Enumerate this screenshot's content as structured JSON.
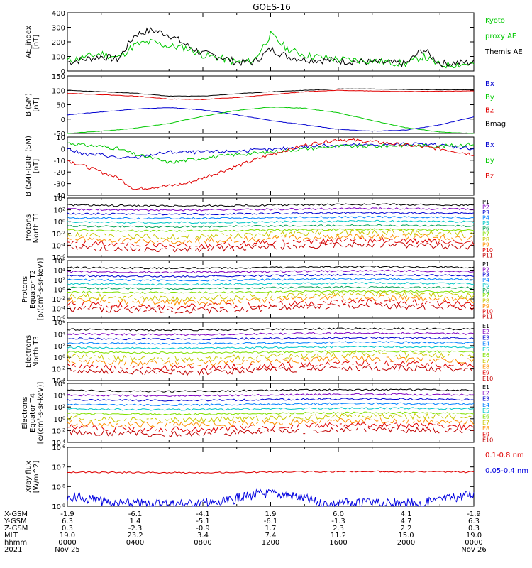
{
  "title": "GOES-16",
  "colors": {
    "black": "#000000",
    "red": "#e00000",
    "green": "#00c800",
    "blue": "#0000d0",
    "yellow": "#c8c800",
    "lime": "#80e000",
    "cyan": "#00c8c8",
    "purple": "#8000c0",
    "orange": "#ff9000",
    "teal": "#00a0a0",
    "xray_red": "#e00000",
    "xray_blue": "#0000e0"
  },
  "x_axis": {
    "tick_hours": [
      0,
      4,
      8,
      12,
      16,
      20,
      24
    ],
    "rows": [
      {
        "label": "X-GSM",
        "values": [
          "-1.9",
          "-6.1",
          "-4.1",
          "1.9",
          "6.0",
          "4.1",
          "-1.9"
        ]
      },
      {
        "label": "Y-GSM",
        "values": [
          "6.3",
          "1.4",
          "-5.1",
          "-6.1",
          "-1.3",
          "4.7",
          "6.3"
        ]
      },
      {
        "label": "Z-GSM",
        "values": [
          "0.3",
          "-2.3",
          "-0.9",
          "1.7",
          "2.3",
          "2.2",
          "0.3"
        ]
      },
      {
        "label": "MLT",
        "values": [
          "19.0",
          "23.2",
          "3.4",
          "7.4",
          "11.2",
          "15.0",
          "19.0"
        ]
      },
      {
        "label": "hhmm",
        "values": [
          "0000",
          "0400",
          "0800",
          "1200",
          "1600",
          "2000",
          "0000"
        ]
      },
      {
        "label": "2021",
        "values": [
          "Nov 25",
          "",
          "",
          "",
          "",
          "",
          "Nov 26"
        ]
      }
    ]
  },
  "panels": [
    {
      "ylabel": [
        "AE_index",
        "[nT]"
      ],
      "yticks": [
        "0",
        "100",
        "200",
        "300",
        "400"
      ],
      "legend": [
        {
          "text": "Kyoto",
          "color": "#00c800"
        },
        {
          "text": "proxy AE",
          "color": "#00c800"
        },
        {
          "text": "Themis AE",
          "color": "#000000"
        }
      ]
    },
    {
      "ylabel": [
        "B (SM)",
        "[nT]"
      ],
      "yticks": [
        "-50",
        "0",
        "50",
        "100",
        "150"
      ],
      "legend": [
        {
          "text": "Bx",
          "color": "#0000d0"
        },
        {
          "text": "By",
          "color": "#00c800"
        },
        {
          "text": "Bz",
          "color": "#e00000"
        },
        {
          "text": "Bmag",
          "color": "#000000"
        }
      ]
    },
    {
      "ylabel": [
        "B (SM)-IGRF (SM)",
        "[nT]"
      ],
      "yticks": [
        "-40",
        "-30",
        "-20",
        "-10",
        "0",
        "10"
      ],
      "legend": [
        {
          "text": "Bx",
          "color": "#0000d0"
        },
        {
          "text": "By",
          "color": "#00c800"
        },
        {
          "text": "Bz",
          "color": "#e00000"
        }
      ]
    },
    {
      "ylabel": [
        "Protons",
        "North T1"
      ],
      "yticks": [
        "10^-6",
        "10^-4",
        "10^-2",
        "10^0",
        "10^2",
        "10^4"
      ],
      "legend": [
        {
          "text": "P1",
          "color": "#000000"
        },
        {
          "text": "P2",
          "color": "#8000c0"
        },
        {
          "text": "P3",
          "color": "#0000d0"
        },
        {
          "text": "P4",
          "color": "#0080ff"
        },
        {
          "text": "P5",
          "color": "#00c8c8"
        },
        {
          "text": "P6",
          "color": "#00a050"
        },
        {
          "text": "P7",
          "color": "#80e000"
        },
        {
          "text": "P8",
          "color": "#c8c800"
        },
        {
          "text": "P9",
          "color": "#ff9000"
        },
        {
          "text": "P10",
          "color": "#e00000"
        },
        {
          "text": "P11",
          "color": "#c00000"
        }
      ]
    },
    {
      "ylabel": [
        "Protons",
        "Equator T2",
        "[p/(cm²-s-sr-keV)]"
      ],
      "yticks": [
        "10^-6",
        "10^-4",
        "10^-2",
        "10^0",
        "10^2",
        "10^4",
        "10^6"
      ],
      "legend": [
        {
          "text": "P1",
          "color": "#000000"
        },
        {
          "text": "P2",
          "color": "#8000c0"
        },
        {
          "text": "P3",
          "color": "#0000d0"
        },
        {
          "text": "P4",
          "color": "#0080ff"
        },
        {
          "text": "P5",
          "color": "#00c8c8"
        },
        {
          "text": "P6",
          "color": "#00a050"
        },
        {
          "text": "P7",
          "color": "#80e000"
        },
        {
          "text": "P8",
          "color": "#c8c800"
        },
        {
          "text": "P9",
          "color": "#ff9000"
        },
        {
          "text": "P10",
          "color": "#e00000"
        },
        {
          "text": "P11",
          "color": "#c00000"
        }
      ]
    },
    {
      "ylabel": [
        "Electrons",
        "North T3"
      ],
      "yticks": [
        "10^-4",
        "10^-2",
        "10^0",
        "10^2",
        "10^4",
        "10^6"
      ],
      "legend": [
        {
          "text": "E1",
          "color": "#000000"
        },
        {
          "text": "E2",
          "color": "#8000c0"
        },
        {
          "text": "E3",
          "color": "#0000d0"
        },
        {
          "text": "E4",
          "color": "#0080ff"
        },
        {
          "text": "E5",
          "color": "#00c8c8"
        },
        {
          "text": "E6",
          "color": "#80e000"
        },
        {
          "text": "E7",
          "color": "#c8c800"
        },
        {
          "text": "E8",
          "color": "#ff9000"
        },
        {
          "text": "E9",
          "color": "#e00000"
        },
        {
          "text": "E10",
          "color": "#c00000"
        }
      ]
    },
    {
      "ylabel": [
        "Electrons",
        "Equator T4",
        "[e/(cm²-s-sr-keV)]"
      ],
      "yticks": [
        "10^-4",
        "10^-2",
        "10^0",
        "10^2",
        "10^4",
        "10^6"
      ],
      "legend": [
        {
          "text": "E1",
          "color": "#000000"
        },
        {
          "text": "E2",
          "color": "#8000c0"
        },
        {
          "text": "E3",
          "color": "#0000d0"
        },
        {
          "text": "E4",
          "color": "#0080ff"
        },
        {
          "text": "E5",
          "color": "#00c8c8"
        },
        {
          "text": "E6",
          "color": "#80e000"
        },
        {
          "text": "E7",
          "color": "#c8c800"
        },
        {
          "text": "E8",
          "color": "#ff9000"
        },
        {
          "text": "E9",
          "color": "#e00000"
        },
        {
          "text": "E10",
          "color": "#c00000"
        }
      ]
    },
    {
      "ylabel": [
        "Xray flux",
        "[W/m^2]"
      ],
      "yticks": [
        "10^-9",
        "10^-8",
        "10^-7",
        "10^-6"
      ],
      "legend": [
        {
          "text": "0.1-0.8 nm",
          "color": "#e00000"
        },
        {
          "text": "0.05-0.4 nm",
          "color": "#0000e0"
        }
      ]
    }
  ],
  "chart_data": [
    {
      "type": "line",
      "x": [
        0,
        2,
        3,
        4,
        5,
        6,
        7,
        8,
        9,
        10,
        11,
        12,
        13,
        14,
        16,
        18,
        20,
        21,
        22,
        24
      ],
      "series": [
        {
          "name": "Themis AE",
          "values": [
            60,
            100,
            80,
            250,
            280,
            250,
            180,
            120,
            100,
            60,
            60,
            150,
            100,
            80,
            70,
            60,
            50,
            150,
            50,
            60
          ]
        },
        {
          "name": "Kyoto proxy AE",
          "values": [
            70,
            120,
            90,
            180,
            200,
            170,
            160,
            110,
            90,
            60,
            70,
            250,
            150,
            110,
            80,
            70,
            50,
            100,
            40,
            50
          ]
        }
      ],
      "ylim": [
        0,
        400
      ]
    },
    {
      "type": "line",
      "x": [
        0,
        2,
        4,
        6,
        8,
        10,
        12,
        14,
        16,
        18,
        20,
        22,
        24
      ],
      "series": [
        {
          "name": "Bx",
          "values": [
            15,
            25,
            35,
            40,
            32,
            15,
            -5,
            -20,
            -35,
            -42,
            -38,
            -20,
            8
          ]
        },
        {
          "name": "By",
          "values": [
            -50,
            -42,
            -32,
            -15,
            10,
            30,
            42,
            38,
            22,
            -5,
            -30,
            -45,
            -50
          ]
        },
        {
          "name": "Bz",
          "values": [
            90,
            85,
            80,
            70,
            68,
            75,
            85,
            95,
            100,
            98,
            96,
            97,
            98
          ]
        },
        {
          "name": "Bmag",
          "values": [
            100,
            95,
            90,
            80,
            80,
            88,
            95,
            100,
            105,
            105,
            103,
            102,
            102
          ]
        }
      ],
      "ylim": [
        -50,
        150
      ]
    },
    {
      "type": "line",
      "x": [
        0,
        1,
        2,
        3,
        4,
        5,
        6,
        7,
        8,
        10,
        12,
        14,
        16,
        18,
        20,
        22,
        24
      ],
      "series": [
        {
          "name": "Bx",
          "values": [
            0,
            -5,
            -5,
            -8,
            -8,
            -5,
            -3,
            -3,
            -3,
            -2,
            -1,
            2,
            3,
            3,
            4,
            3,
            0
          ]
        },
        {
          "name": "By",
          "values": [
            5,
            3,
            2,
            0,
            -5,
            -8,
            -12,
            -10,
            -8,
            -5,
            -3,
            0,
            2,
            2,
            3,
            2,
            4
          ]
        },
        {
          "name": "Bz",
          "values": [
            -10,
            -15,
            -20,
            -25,
            -35,
            -33,
            -32,
            -30,
            -25,
            -15,
            -5,
            3,
            8,
            6,
            3,
            0,
            -5
          ]
        }
      ],
      "ylim": [
        -40,
        10
      ]
    }
  ]
}
